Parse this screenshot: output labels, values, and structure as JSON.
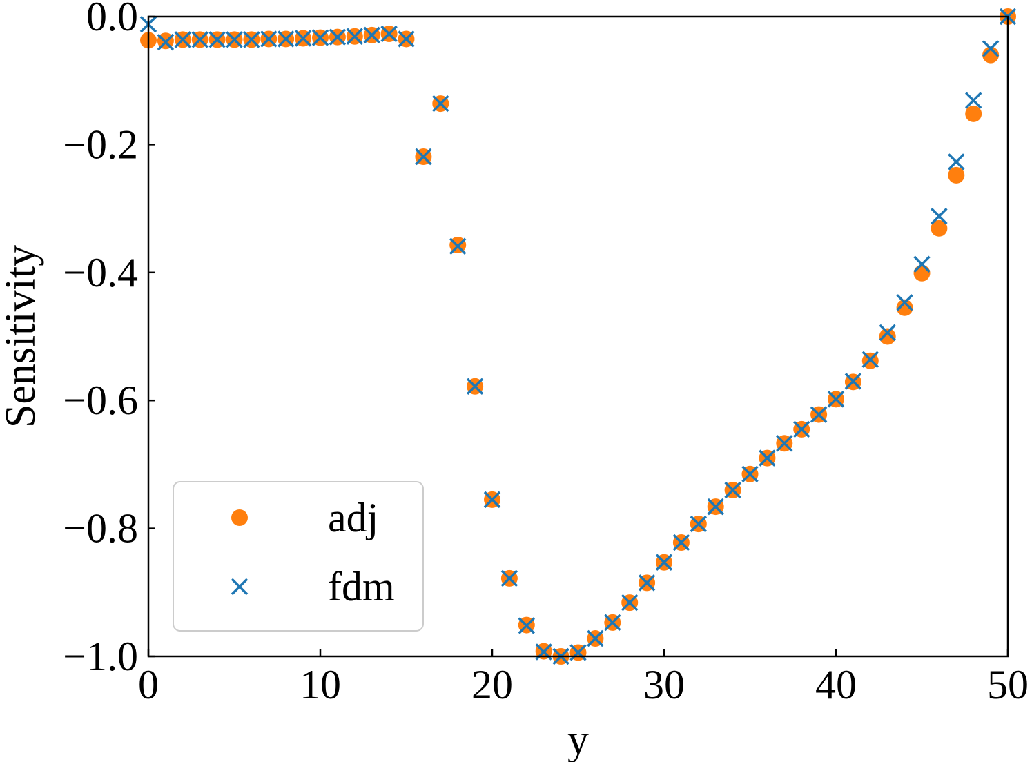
{
  "chart_data": {
    "type": "scatter",
    "title": "",
    "xlabel": "y",
    "ylabel": "Sensitivity",
    "xlim": [
      0,
      50
    ],
    "ylim": [
      -1.0,
      0.0
    ],
    "grid": false,
    "legend_position": "lower-left",
    "xticks": [
      {
        "value": 0,
        "label": "0"
      },
      {
        "value": 10,
        "label": "10"
      },
      {
        "value": 20,
        "label": "20"
      },
      {
        "value": 30,
        "label": "30"
      },
      {
        "value": 40,
        "label": "40"
      },
      {
        "value": 50,
        "label": "50"
      }
    ],
    "yticks": [
      {
        "value": 0.0,
        "label": "0.0"
      },
      {
        "value": -0.2,
        "label": "−0.2"
      },
      {
        "value": -0.4,
        "label": "−0.4"
      },
      {
        "value": -0.6,
        "label": "−0.6"
      },
      {
        "value": -0.8,
        "label": "−0.8"
      },
      {
        "value": -1.0,
        "label": "−1.0"
      }
    ],
    "series": [
      {
        "name": "adj",
        "marker": "circle",
        "color": "#ff7f0e",
        "x": [
          0,
          1,
          2,
          3,
          4,
          5,
          6,
          7,
          8,
          9,
          10,
          11,
          12,
          13,
          14,
          15,
          16,
          17,
          18,
          19,
          20,
          21,
          22,
          23,
          24,
          25,
          26,
          27,
          28,
          29,
          30,
          31,
          32,
          33,
          34,
          35,
          36,
          37,
          38,
          39,
          40,
          41,
          42,
          43,
          44,
          45,
          46,
          47,
          48,
          49,
          50
        ],
        "values": [
          -0.037,
          -0.038,
          -0.036,
          -0.036,
          -0.036,
          -0.036,
          -0.036,
          -0.035,
          -0.035,
          -0.034,
          -0.033,
          -0.032,
          -0.031,
          -0.029,
          -0.027,
          -0.035,
          -0.219,
          -0.136,
          -0.357,
          -0.578,
          -0.755,
          -0.878,
          -0.951,
          -0.992,
          -1.0,
          -0.994,
          -0.972,
          -0.947,
          -0.916,
          -0.885,
          -0.853,
          -0.822,
          -0.793,
          -0.766,
          -0.74,
          -0.715,
          -0.69,
          -0.667,
          -0.645,
          -0.622,
          -0.598,
          -0.571,
          -0.538,
          -0.5,
          -0.455,
          -0.401,
          -0.331,
          -0.248,
          -0.152,
          -0.06,
          0.0
        ]
      },
      {
        "name": "fdm",
        "marker": "x",
        "color": "#1f77b4",
        "x": [
          0,
          1,
          2,
          3,
          4,
          5,
          6,
          7,
          8,
          9,
          10,
          11,
          12,
          13,
          14,
          15,
          16,
          17,
          18,
          19,
          20,
          21,
          22,
          23,
          24,
          25,
          26,
          27,
          28,
          29,
          30,
          31,
          32,
          33,
          34,
          35,
          36,
          37,
          38,
          39,
          40,
          41,
          42,
          43,
          44,
          45,
          46,
          47,
          48,
          49,
          50
        ],
        "values": [
          -0.012,
          -0.04,
          -0.036,
          -0.036,
          -0.036,
          -0.036,
          -0.036,
          -0.035,
          -0.035,
          -0.034,
          -0.033,
          -0.032,
          -0.031,
          -0.029,
          -0.027,
          -0.035,
          -0.219,
          -0.136,
          -0.359,
          -0.578,
          -0.755,
          -0.878,
          -0.952,
          -0.993,
          -1.0,
          -0.994,
          -0.972,
          -0.947,
          -0.916,
          -0.885,
          -0.853,
          -0.822,
          -0.793,
          -0.766,
          -0.74,
          -0.715,
          -0.69,
          -0.667,
          -0.645,
          -0.622,
          -0.598,
          -0.57,
          -0.536,
          -0.494,
          -0.447,
          -0.387,
          -0.312,
          -0.227,
          -0.131,
          -0.05,
          0.0
        ]
      }
    ]
  }
}
